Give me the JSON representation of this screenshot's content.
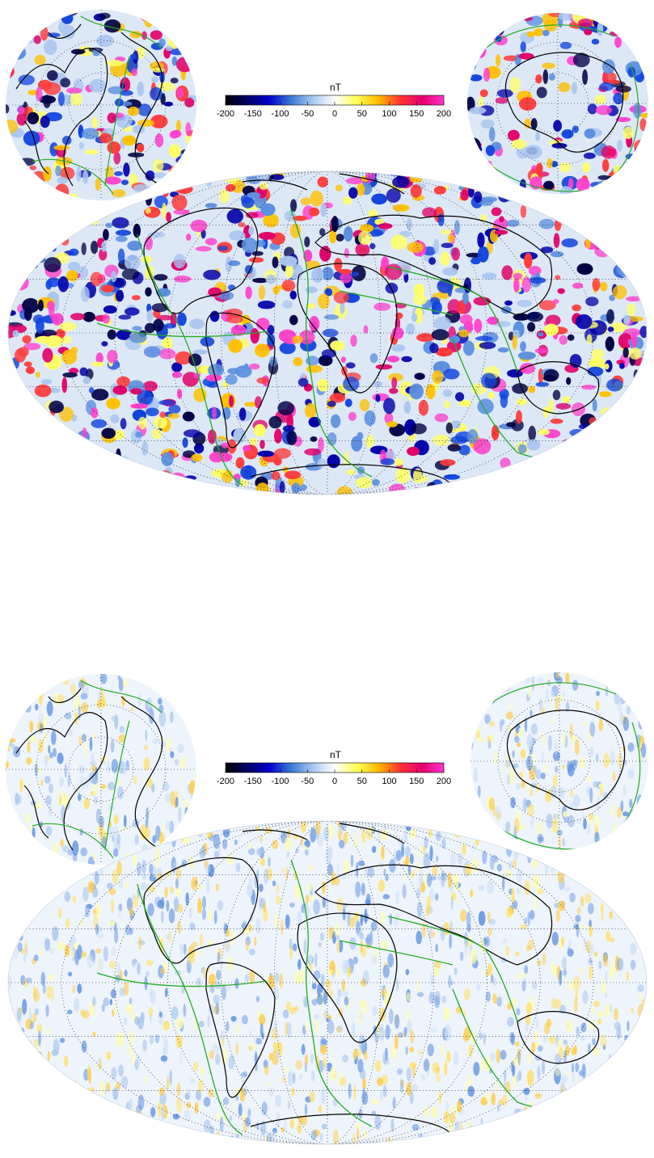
{
  "colorbar": {
    "unit": "nT",
    "ticks": [
      "-200",
      "-150",
      "-100",
      "-50",
      "0",
      "50",
      "100",
      "150",
      "200"
    ],
    "range": [
      -200,
      200
    ],
    "stops": [
      "#000000",
      "#000066",
      "#0000cc",
      "#3a7bd5",
      "#a8c8f0",
      "#ffffff",
      "#ffff55",
      "#ffbb00",
      "#ff3333",
      "#e6006e",
      "#ff33cc"
    ]
  },
  "maps": [
    {
      "id": "top",
      "projection": "Hammer-Aitoff with polar stereographic insets",
      "anomaly_strength": "strong"
    },
    {
      "id": "bottom",
      "projection": "Hammer-Aitoff with polar stereographic insets",
      "anomaly_strength": "weak"
    }
  ],
  "colors": {
    "coastline": "#000000",
    "plate_boundary": "#22aa22",
    "graticule": "#000000"
  }
}
